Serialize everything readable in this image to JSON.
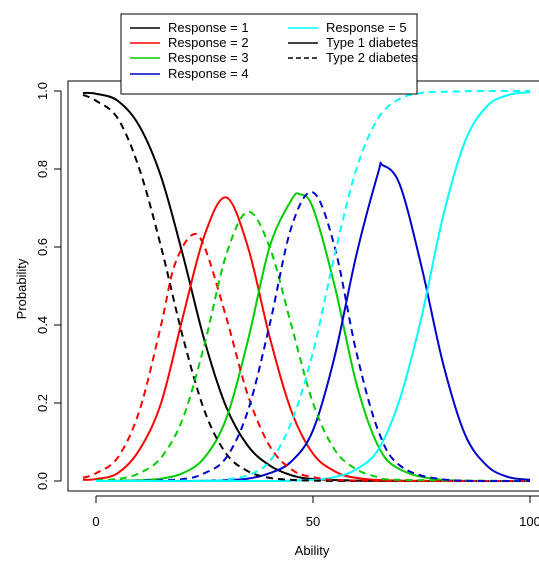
{
  "chart_data": {
    "type": "line",
    "title": "",
    "xlabel": "Ability",
    "ylabel": "Probability",
    "xlim": [
      -3,
      100
    ],
    "ylim": [
      0,
      1
    ],
    "x_ticks": [
      0,
      50,
      100
    ],
    "x_tick_labels": [
      "0",
      "50",
      "100"
    ],
    "y_ticks": [
      0,
      0.2,
      0.4,
      0.6,
      0.8,
      1
    ],
    "y_tick_labels": [
      "0.0",
      "0.2",
      "0.4",
      "0.6",
      "0.8",
      "1.0"
    ],
    "grid": false,
    "legend_position": "top",
    "legend": {
      "response": [
        {
          "label": "Response = 1",
          "color": "#000000"
        },
        {
          "label": "Response = 2",
          "color": "#ff0000"
        },
        {
          "label": "Response = 3",
          "color": "#00cd00"
        },
        {
          "label": "Response = 4",
          "color": "#0000cd"
        },
        {
          "label": "Response = 5",
          "color": "#00ffff"
        }
      ],
      "group": [
        {
          "label": "Type 1 diabetes",
          "linestyle": "solid"
        },
        {
          "label": "Type 2 diabetes",
          "linestyle": "dashed"
        }
      ]
    },
    "series": [
      {
        "name": "Response = 1",
        "group": "Type 1 diabetes",
        "color": "#000000",
        "linestyle": "solid",
        "x": [
          -3,
          0,
          5,
          10,
          15,
          20,
          25,
          30,
          35,
          40,
          45,
          50,
          60,
          70,
          80,
          100
        ],
        "y": [
          0.995,
          0.993,
          0.975,
          0.91,
          0.78,
          0.58,
          0.36,
          0.19,
          0.09,
          0.04,
          0.015,
          0.005,
          0.001,
          0,
          0,
          0
        ]
      },
      {
        "name": "Response = 2",
        "group": "Type 1 diabetes",
        "color": "#ff0000",
        "linestyle": "solid",
        "x": [
          -3,
          0,
          5,
          10,
          15,
          20,
          25,
          30,
          35,
          40,
          45,
          50,
          55,
          60,
          70,
          100
        ],
        "y": [
          0.003,
          0.005,
          0.02,
          0.08,
          0.2,
          0.42,
          0.63,
          0.727,
          0.6,
          0.37,
          0.18,
          0.07,
          0.025,
          0.008,
          0.001,
          0
        ]
      },
      {
        "name": "Response = 3",
        "group": "Type 1 diabetes",
        "color": "#00cd00",
        "linestyle": "solid",
        "x": [
          0,
          10,
          15,
          20,
          25,
          30,
          35,
          40,
          45,
          47,
          50,
          55,
          60,
          65,
          70,
          80,
          100
        ],
        "y": [
          0,
          0.002,
          0.006,
          0.02,
          0.06,
          0.16,
          0.36,
          0.6,
          0.72,
          0.735,
          0.7,
          0.5,
          0.25,
          0.09,
          0.03,
          0.003,
          0
        ]
      },
      {
        "name": "Response = 4",
        "group": "Type 1 diabetes",
        "color": "#0000cd",
        "linestyle": "solid",
        "x": [
          0,
          20,
          30,
          35,
          40,
          45,
          50,
          55,
          60,
          65,
          66,
          70,
          75,
          80,
          85,
          90,
          95,
          100
        ],
        "y": [
          0,
          0,
          0.002,
          0.006,
          0.02,
          0.05,
          0.13,
          0.32,
          0.58,
          0.79,
          0.81,
          0.76,
          0.55,
          0.3,
          0.12,
          0.04,
          0.01,
          0.003
        ]
      },
      {
        "name": "Response = 5",
        "group": "Type 1 diabetes",
        "color": "#00ffff",
        "linestyle": "solid",
        "x": [
          0,
          40,
          50,
          55,
          60,
          65,
          70,
          75,
          80,
          85,
          90,
          95,
          100
        ],
        "y": [
          0,
          0,
          0.003,
          0.01,
          0.03,
          0.08,
          0.21,
          0.42,
          0.68,
          0.87,
          0.96,
          0.99,
          0.997
        ]
      },
      {
        "name": "Response = 1",
        "group": "Type 2 diabetes",
        "color": "#000000",
        "linestyle": "dashed",
        "x": [
          -3,
          0,
          5,
          10,
          15,
          20,
          25,
          30,
          35,
          40,
          45,
          50,
          60,
          100
        ],
        "y": [
          0.99,
          0.975,
          0.93,
          0.8,
          0.6,
          0.37,
          0.18,
          0.07,
          0.025,
          0.008,
          0.003,
          0.001,
          0,
          0
        ]
      },
      {
        "name": "Response = 2",
        "group": "Type 2 diabetes",
        "color": "#ff0000",
        "linestyle": "dashed",
        "x": [
          -3,
          0,
          5,
          10,
          15,
          18,
          22,
          25,
          30,
          35,
          40,
          45,
          50,
          60,
          100
        ],
        "y": [
          0.008,
          0.02,
          0.06,
          0.18,
          0.4,
          0.55,
          0.63,
          0.6,
          0.42,
          0.22,
          0.09,
          0.03,
          0.01,
          0.001,
          0
        ]
      },
      {
        "name": "Response = 3",
        "group": "Type 2 diabetes",
        "color": "#00cd00",
        "linestyle": "dashed",
        "x": [
          0,
          5,
          10,
          15,
          20,
          25,
          30,
          35,
          40,
          45,
          50,
          55,
          60,
          65,
          70,
          100
        ],
        "y": [
          0.002,
          0.005,
          0.02,
          0.06,
          0.16,
          0.35,
          0.58,
          0.69,
          0.6,
          0.4,
          0.2,
          0.08,
          0.03,
          0.01,
          0.003,
          0
        ]
      },
      {
        "name": "Response = 4",
        "group": "Type 2 diabetes",
        "color": "#0000cd",
        "linestyle": "dashed",
        "x": [
          0,
          10,
          20,
          25,
          30,
          35,
          40,
          45,
          50,
          55,
          60,
          65,
          70,
          80,
          100
        ],
        "y": [
          0,
          0.001,
          0.005,
          0.02,
          0.06,
          0.18,
          0.4,
          0.65,
          0.74,
          0.6,
          0.33,
          0.13,
          0.04,
          0.004,
          0
        ]
      },
      {
        "name": "Response = 5",
        "group": "Type 2 diabetes",
        "color": "#00ffff",
        "linestyle": "dashed",
        "x": [
          0,
          25,
          30,
          35,
          40,
          45,
          50,
          55,
          60,
          65,
          70,
          75,
          80,
          90,
          100
        ],
        "y": [
          0,
          0.001,
          0.004,
          0.015,
          0.05,
          0.15,
          0.33,
          0.58,
          0.8,
          0.93,
          0.98,
          0.995,
          0.998,
          1,
          1
        ]
      }
    ]
  }
}
